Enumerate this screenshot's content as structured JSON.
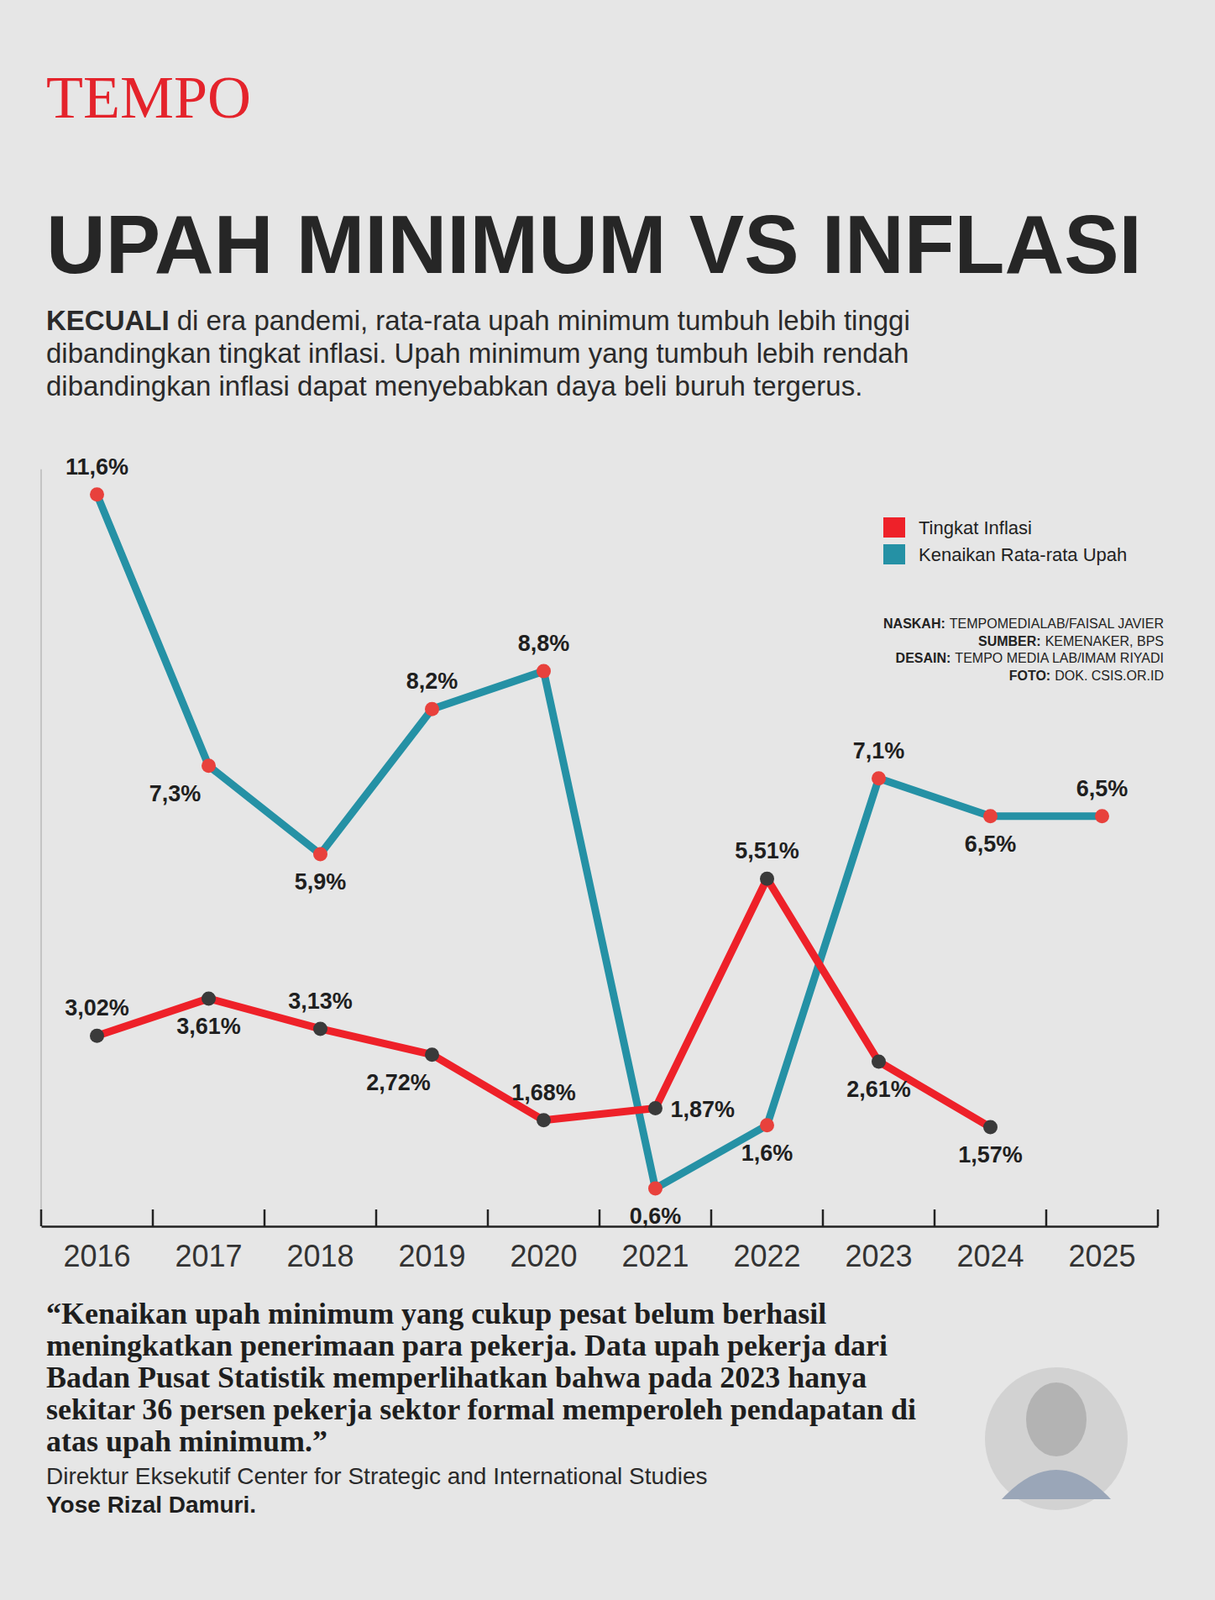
{
  "brand": "TEMPO",
  "chart_data": {
    "type": "line",
    "title": "UPAH MINIMUM VS INFLASI",
    "subtitle_lead": "KECUALI",
    "subtitle": "di era pandemi, rata-rata upah minimum tumbuh lebih tinggi dibandingkan tingkat inflasi. Upah minimum yang tumbuh lebih rendah dibandingkan inflasi dapat menyebabkan daya beli buruh tergerus.",
    "categories": [
      "2016",
      "2017",
      "2018",
      "2019",
      "2020",
      "2021",
      "2022",
      "2023",
      "2024",
      "2025"
    ],
    "series": [
      {
        "name": "Tingkat Inflasi",
        "color": "#ee2129",
        "marker": "circle",
        "values": [
          3.02,
          3.61,
          3.13,
          2.72,
          1.68,
          1.87,
          5.51,
          2.61,
          1.57,
          null
        ],
        "value_labels": [
          "3,02%",
          "3,61%",
          "3,13%",
          "2,72%",
          "1,68%",
          "1,87%",
          "5,51%",
          "2,61%",
          "1,57%",
          null
        ]
      },
      {
        "name": "Kenaikan Rata-rata Upah",
        "color": "#2591a5",
        "marker": "circle",
        "values": [
          11.6,
          7.3,
          5.9,
          8.2,
          8.8,
          0.6,
          1.6,
          7.1,
          6.5,
          6.5
        ],
        "value_labels": [
          "11,6%",
          "7,3%",
          "5,9%",
          "8,2%",
          "8,8%",
          "0,6%",
          "1,6%",
          "7,1%",
          "6,5%",
          "6,5%"
        ]
      }
    ],
    "ylim": [
      0,
      12
    ],
    "tick_labels": "x",
    "grid": false,
    "data_labels": true,
    "legend": "top-right"
  },
  "credits": [
    {
      "label": "NASKAH:",
      "text": "TEMPOMEDIALAB/FAISAL JAVIER"
    },
    {
      "label": "SUMBER:",
      "text": "KEMENAKER, BPS"
    },
    {
      "label": "DESAIN:",
      "text": "TEMPO MEDIA LAB/IMAM RIYADI"
    },
    {
      "label": "FOTO:",
      "text": "DOK. CSIS.OR.ID"
    }
  ],
  "quote": {
    "text": "“Kenaikan upah minimum yang cukup pesat belum berhasil meningkatkan penerimaan para pekerja. Data upah pekerja dari Badan Pusat Statistik memperlihatkan bahwa pada 2023 hanya sekitar 36 persen pekerja sektor formal memperoleh pendapatan di atas upah minimum.”",
    "role": "Direktur Eksekutif Center for Strategic and International Studies",
    "name": "Yose Rizal Damuri."
  }
}
